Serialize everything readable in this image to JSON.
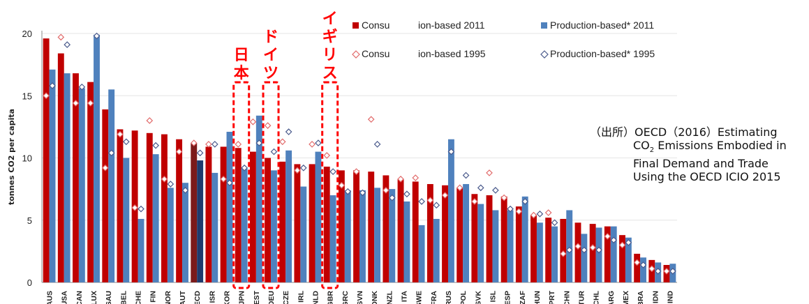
{
  "chart_data": {
    "type": "bar",
    "ylabel": "tonnes CO2 per capita",
    "ylim": [
      0,
      20
    ],
    "yticks": [
      0,
      5,
      10,
      15,
      20
    ],
    "categories": [
      "AUS",
      "USA",
      "CAN",
      "LUX",
      "SAU",
      "BEL",
      "CHE",
      "FIN",
      "NOR",
      "AUT",
      "OECD",
      "ISR",
      "KOR",
      "JPN",
      "EST",
      "DEU",
      "CZE",
      "IRL",
      "NLD",
      "GBR",
      "GRC",
      "SVN",
      "DNK",
      "NZL",
      "ITA",
      "SWE",
      "FRA",
      "RUS",
      "POL",
      "SVK",
      "ISL",
      "ESP",
      "ZAF",
      "HUN",
      "PRT",
      "CHN",
      "TUR",
      "CHL",
      "ARG",
      "MEX",
      "BRA",
      "IDN",
      "IND"
    ],
    "series": [
      {
        "name": "Consumption-based 2011",
        "marker": "bar",
        "color": "#c00000",
        "values": [
          19.6,
          18.4,
          16.8,
          16.1,
          13.9,
          12.3,
          12.2,
          12.0,
          11.9,
          11.5,
          11.2,
          10.9,
          10.9,
          10.8,
          10.5,
          10.0,
          9.7,
          9.5,
          9.5,
          9.3,
          9.0,
          9.0,
          8.9,
          8.6,
          8.3,
          8.1,
          7.9,
          7.8,
          7.6,
          7.1,
          7.0,
          6.9,
          6.1,
          5.4,
          5.2,
          5.1,
          4.8,
          4.7,
          4.5,
          3.8,
          2.3,
          1.8,
          1.4
        ]
      },
      {
        "name": "Production-based* 2011",
        "marker": "bar",
        "color": "#4f81bd",
        "values": [
          17.1,
          16.8,
          15.6,
          19.9,
          15.5,
          10.0,
          5.1,
          10.3,
          7.6,
          8.0,
          9.8,
          8.8,
          12.1,
          9.2,
          13.4,
          9.0,
          10.6,
          7.7,
          10.5,
          7.0,
          7.4,
          7.4,
          7.6,
          7.5,
          6.5,
          4.6,
          5.1,
          11.5,
          7.9,
          6.3,
          5.8,
          5.8,
          6.9,
          4.8,
          4.5,
          5.8,
          3.9,
          4.4,
          4.5,
          3.6,
          2.0,
          1.6,
          1.5
        ]
      },
      {
        "name": "Consumption-based 1995",
        "marker": "open-diamond",
        "color": "#e26b6b",
        "values": [
          15.0,
          19.7,
          14.4,
          14.4,
          9.2,
          11.9,
          6.0,
          13.0,
          8.3,
          10.5,
          11.2,
          11.1,
          8.3,
          11.1,
          12.9,
          12.6,
          11.3,
          9.0,
          11.1,
          10.2,
          7.8,
          8.9,
          13.1,
          7.4,
          8.3,
          8.4,
          6.6,
          7.0,
          7.6,
          6.5,
          8.8,
          6.8,
          5.7,
          5.4,
          5.6,
          2.3,
          2.9,
          2.8,
          3.7,
          3.0,
          1.6,
          1.1,
          0.9
        ]
      },
      {
        "name": "Production-based* 1995",
        "marker": "open-diamond",
        "color": "#4a5a8c",
        "values": [
          15.8,
          19.1,
          15.7,
          19.8,
          10.4,
          11.3,
          5.9,
          11.0,
          7.9,
          7.4,
          10.4,
          11.1,
          8.0,
          9.2,
          11.2,
          10.5,
          12.1,
          9.2,
          11.2,
          8.9,
          7.3,
          7.2,
          11.1,
          6.8,
          7.1,
          6.5,
          6.2,
          10.5,
          8.6,
          7.6,
          7.4,
          5.9,
          6.5,
          5.5,
          4.8,
          2.6,
          2.6,
          2.6,
          3.4,
          3.2,
          1.4,
          0.9,
          0.9
        ]
      }
    ],
    "legend_position": "top-right",
    "legend_visible_text": [
      "Consu",
      "ion-based 2011",
      "Production-based* 2011",
      "Consu",
      "ion-based 1995",
      "Production-based* 1995"
    ],
    "highlight_annotations": [
      {
        "label": "日本",
        "category": "JPN"
      },
      {
        "label": "ドイツ",
        "category": "DEU"
      },
      {
        "label": "イギリス",
        "category": "GBR"
      }
    ]
  },
  "source_note": {
    "line1": "（出所）OECD（2016）Estimating",
    "line2_prefix": "CO",
    "line2_sub": "2",
    "line2_suffix": " Emissions Embodied in",
    "line3": "Final Demand and Trade",
    "line4": "Using the OECD ICIO 2015"
  },
  "colors": {
    "annotation": "#ff0000",
    "oecd_consumption": "#7b1a1a",
    "oecd_production": "#1f3b6e"
  }
}
